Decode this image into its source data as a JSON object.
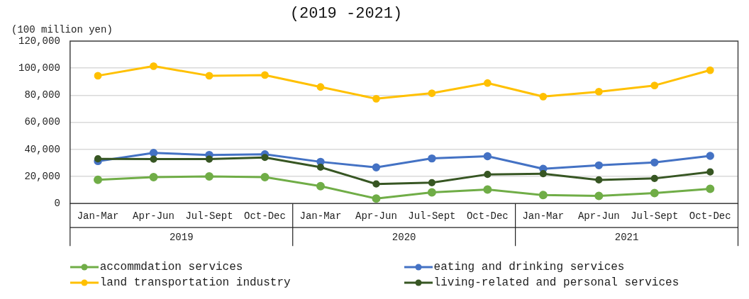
{
  "chart_data": {
    "type": "line",
    "title": "(2019 -2021)",
    "ylabel": "(100 million yen)",
    "categories": [
      "Jan-Mar",
      "Apr-Jun",
      "Jul-Sept",
      "Oct-Dec",
      "Jan-Mar",
      "Apr-Jun",
      "Jul-Sept",
      "Oct-Dec",
      "Jan-Mar",
      "Apr-Jun",
      "Jul-Sept",
      "Oct-Dec"
    ],
    "annotations": [
      "2019",
      "2020",
      "2021"
    ],
    "series": [
      {
        "name": "accommdation services",
        "color": "#70ad47",
        "values": [
          17500,
          19500,
          20000,
          19500,
          12800,
          3600,
          8200,
          10300,
          6200,
          5600,
          7700,
          10800
        ]
      },
      {
        "name": "eating and drinking services",
        "color": "#4472c4",
        "values": [
          31300,
          37400,
          35900,
          36400,
          30800,
          26700,
          33300,
          34900,
          25600,
          28200,
          30300,
          35200
        ]
      },
      {
        "name": "land transportation industry",
        "color": "#ffc000",
        "values": [
          94400,
          101500,
          94400,
          94900,
          86100,
          77400,
          81500,
          89000,
          79000,
          82600,
          87200,
          98500
        ]
      },
      {
        "name": "living-related and personal services",
        "color": "#375623",
        "values": [
          33000,
          32800,
          32800,
          34000,
          26800,
          14400,
          15400,
          21500,
          22000,
          17400,
          18500,
          23300
        ]
      }
    ],
    "ylim": [
      0,
      120000
    ],
    "yticks": [
      0,
      {
        "value": 20000,
        "label": "20,000"
      },
      {
        "value": 40000,
        "label": "40,000"
      },
      {
        "value": 60000,
        "label": "60,000"
      },
      {
        "value": 80000,
        "label": "80,000"
      },
      {
        "value": 100000,
        "label": "100,000"
      },
      {
        "value": 120000,
        "label": "120,000"
      }
    ],
    "grid": "y",
    "legend": "bottom",
    "marker": "circle",
    "line_style": "solid"
  }
}
